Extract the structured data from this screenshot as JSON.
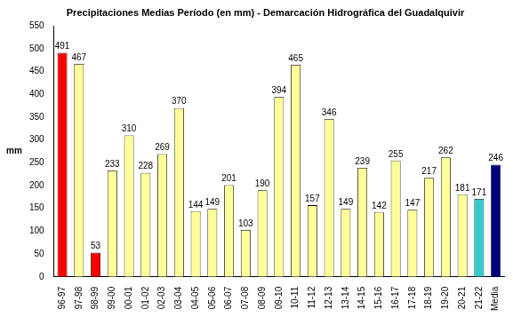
{
  "chart_data": {
    "type": "bar",
    "title": "Precipitaciones Medias Período (en mm) - Demarcación Hidrográfica del Guadalquivir",
    "ylabel": "mm",
    "categories": [
      "96-97",
      "97-98",
      "98-99",
      "99-00",
      "00-01",
      "01-02",
      "02-03",
      "03-04",
      "04-05",
      "05-06",
      "06-07",
      "07-08",
      "08-09",
      "09-10",
      "10-11",
      "11-12",
      "12-13",
      "13-14",
      "14-15",
      "15-16",
      "16-17",
      "17-18",
      "18-19",
      "19-20",
      "20-21",
      "21-22",
      "Media"
    ],
    "values": [
      491,
      467,
      53,
      233,
      310,
      228,
      269,
      370,
      144,
      149,
      201,
      103,
      190,
      394,
      465,
      157,
      346,
      149,
      239,
      142,
      255,
      147,
      217,
      262,
      181,
      171,
      246
    ],
    "colors": [
      "#ff0000",
      "#ffff99",
      "#ff0000",
      "#ffff99",
      "#ffff99",
      "#ffff99",
      "#ffff99",
      "#ffff99",
      "#ffff99",
      "#ffff99",
      "#ffff99",
      "#ffff99",
      "#ffff99",
      "#ffff99",
      "#ffff99",
      "#ffff99",
      "#ffff99",
      "#ffff99",
      "#ffff99",
      "#ffff99",
      "#ffff99",
      "#ffff99",
      "#ffff99",
      "#ffff99",
      "#ffff99",
      "#33cccc",
      "#000080"
    ],
    "ylim": [
      0,
      550
    ],
    "yticks": [
      0,
      50,
      100,
      150,
      200,
      250,
      300,
      350,
      400,
      450,
      500,
      550
    ],
    "grid": false,
    "data_labels": true
  }
}
